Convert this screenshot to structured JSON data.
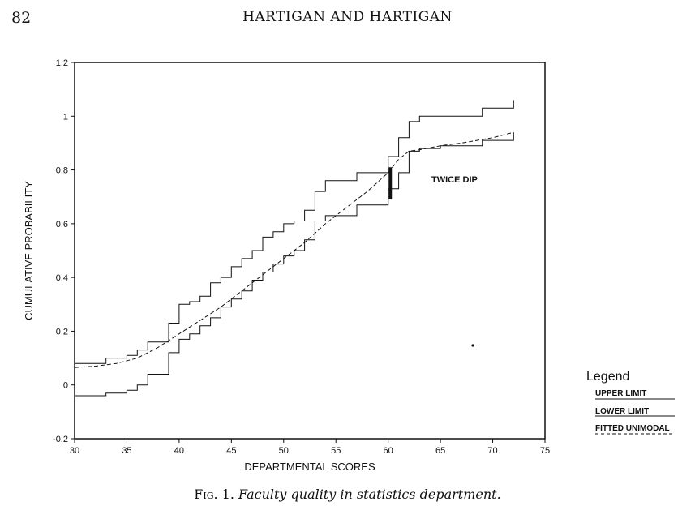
{
  "page": {
    "number": "82",
    "header": "HARTIGAN AND HARTIGAN",
    "caption_label": "Fig. 1.",
    "caption_text": "Faculty quality in statistics department."
  },
  "chart_data": {
    "type": "line",
    "xlabel": "DEPARTMENTAL SCORES",
    "ylabel": "CUMULATIVE PROBABILITY",
    "xlim": [
      30,
      75
    ],
    "ylim": [
      -0.2,
      1.2
    ],
    "xticks": [
      "30",
      "35",
      "40",
      "45",
      "50",
      "55",
      "60",
      "65",
      "70",
      "75"
    ],
    "yticks": [
      "-0.2",
      "0",
      "0.2",
      "0.4",
      "0.6",
      "0.8",
      "1",
      "1.2"
    ],
    "annotation": "TWICE DIP",
    "dip": {
      "x": 60.2,
      "y_low": 0.69,
      "y_high": 0.81
    },
    "legend": {
      "title": "Legend",
      "entries": [
        "UPPER LIMIT",
        "LOWER LIMIT",
        "FITTED UNIMODAL"
      ]
    },
    "series": [
      {
        "name": "UPPER LIMIT",
        "style": "step",
        "points": [
          [
            30,
            0.08
          ],
          [
            33,
            0.08
          ],
          [
            33,
            0.1
          ],
          [
            35,
            0.1
          ],
          [
            35,
            0.11
          ],
          [
            36,
            0.11
          ],
          [
            36,
            0.13
          ],
          [
            37,
            0.13
          ],
          [
            37,
            0.16
          ],
          [
            39,
            0.16
          ],
          [
            39,
            0.23
          ],
          [
            40,
            0.23
          ],
          [
            40,
            0.3
          ],
          [
            41,
            0.3
          ],
          [
            41,
            0.31
          ],
          [
            42,
            0.31
          ],
          [
            42,
            0.33
          ],
          [
            43,
            0.33
          ],
          [
            43,
            0.38
          ],
          [
            44,
            0.38
          ],
          [
            44,
            0.4
          ],
          [
            45,
            0.4
          ],
          [
            45,
            0.44
          ],
          [
            46,
            0.44
          ],
          [
            46,
            0.47
          ],
          [
            47,
            0.47
          ],
          [
            47,
            0.5
          ],
          [
            48,
            0.5
          ],
          [
            48,
            0.55
          ],
          [
            49,
            0.55
          ],
          [
            49,
            0.57
          ],
          [
            50,
            0.57
          ],
          [
            50,
            0.6
          ],
          [
            51,
            0.6
          ],
          [
            51,
            0.61
          ],
          [
            52,
            0.61
          ],
          [
            52,
            0.65
          ],
          [
            53,
            0.65
          ],
          [
            53,
            0.72
          ],
          [
            54,
            0.72
          ],
          [
            54,
            0.76
          ],
          [
            57,
            0.76
          ],
          [
            57,
            0.79
          ],
          [
            60,
            0.79
          ],
          [
            60,
            0.85
          ],
          [
            61,
            0.85
          ],
          [
            61,
            0.92
          ],
          [
            62,
            0.92
          ],
          [
            62,
            0.98
          ],
          [
            63,
            0.98
          ],
          [
            63,
            1.0
          ],
          [
            69,
            1.0
          ],
          [
            69,
            1.03
          ],
          [
            72,
            1.03
          ],
          [
            72,
            1.06
          ]
        ]
      },
      {
        "name": "LOWER LIMIT",
        "style": "step",
        "points": [
          [
            30,
            -0.04
          ],
          [
            33,
            -0.04
          ],
          [
            33,
            -0.03
          ],
          [
            35,
            -0.03
          ],
          [
            35,
            -0.02
          ],
          [
            36,
            -0.02
          ],
          [
            36,
            0.0
          ],
          [
            37,
            0.0
          ],
          [
            37,
            0.04
          ],
          [
            39,
            0.04
          ],
          [
            39,
            0.12
          ],
          [
            40,
            0.12
          ],
          [
            40,
            0.17
          ],
          [
            41,
            0.17
          ],
          [
            41,
            0.19
          ],
          [
            42,
            0.19
          ],
          [
            42,
            0.22
          ],
          [
            43,
            0.22
          ],
          [
            43,
            0.25
          ],
          [
            44,
            0.25
          ],
          [
            44,
            0.29
          ],
          [
            45,
            0.29
          ],
          [
            45,
            0.32
          ],
          [
            46,
            0.32
          ],
          [
            46,
            0.35
          ],
          [
            47,
            0.35
          ],
          [
            47,
            0.39
          ],
          [
            48,
            0.39
          ],
          [
            48,
            0.42
          ],
          [
            49,
            0.42
          ],
          [
            49,
            0.45
          ],
          [
            50,
            0.45
          ],
          [
            50,
            0.48
          ],
          [
            51,
            0.48
          ],
          [
            51,
            0.5
          ],
          [
            52,
            0.5
          ],
          [
            52,
            0.54
          ],
          [
            53,
            0.54
          ],
          [
            53,
            0.61
          ],
          [
            54,
            0.61
          ],
          [
            54,
            0.63
          ],
          [
            57,
            0.63
          ],
          [
            57,
            0.67
          ],
          [
            60,
            0.67
          ],
          [
            60,
            0.73
          ],
          [
            61,
            0.73
          ],
          [
            61,
            0.79
          ],
          [
            62,
            0.79
          ],
          [
            62,
            0.87
          ],
          [
            63,
            0.87
          ],
          [
            63,
            0.88
          ],
          [
            65,
            0.88
          ],
          [
            65,
            0.89
          ],
          [
            69,
            0.89
          ],
          [
            69,
            0.91
          ],
          [
            72,
            0.91
          ],
          [
            72,
            0.94
          ]
        ]
      },
      {
        "name": "FITTED UNIMODAL",
        "style": "dashed",
        "points": [
          [
            30,
            0.065
          ],
          [
            32,
            0.07
          ],
          [
            34,
            0.08
          ],
          [
            36,
            0.1
          ],
          [
            38,
            0.14
          ],
          [
            40,
            0.19
          ],
          [
            42,
            0.24
          ],
          [
            44,
            0.29
          ],
          [
            46,
            0.35
          ],
          [
            48,
            0.41
          ],
          [
            50,
            0.47
          ],
          [
            52,
            0.53
          ],
          [
            54,
            0.6
          ],
          [
            56,
            0.66
          ],
          [
            58,
            0.72
          ],
          [
            60,
            0.79
          ],
          [
            61,
            0.84
          ],
          [
            62,
            0.87
          ],
          [
            63,
            0.875
          ],
          [
            65,
            0.89
          ],
          [
            67,
            0.9
          ],
          [
            70,
            0.92
          ],
          [
            72,
            0.94
          ]
        ]
      }
    ]
  }
}
